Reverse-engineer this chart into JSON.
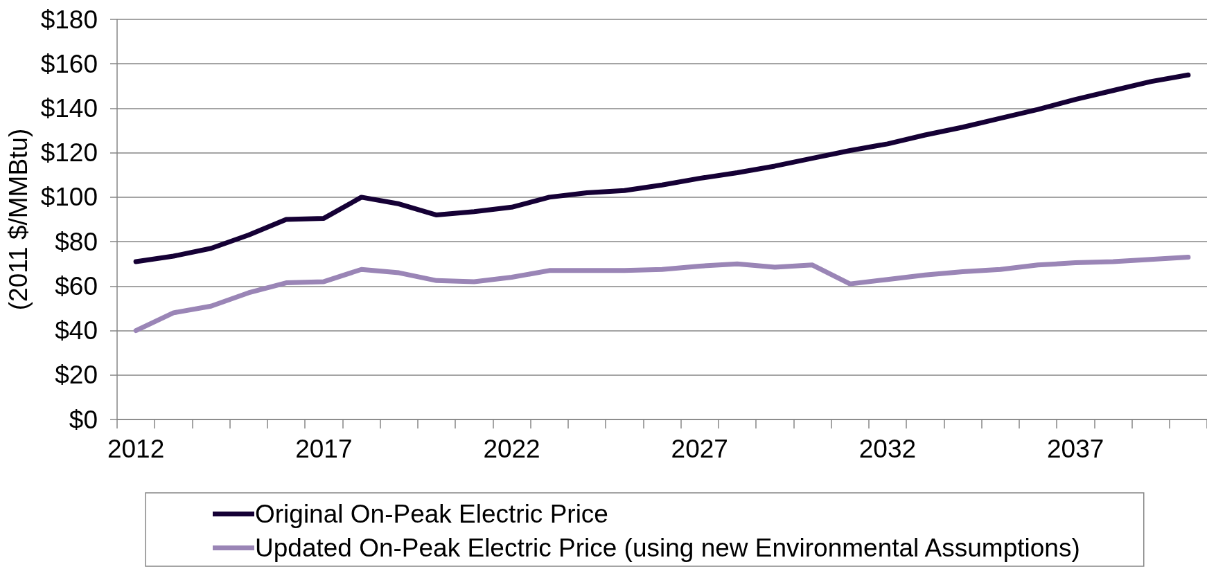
{
  "chart_data": {
    "type": "line",
    "ylabel": "(2011 $/MMBtu)",
    "categories": [
      "2012",
      null,
      null,
      null,
      null,
      "2017",
      null,
      null,
      null,
      null,
      "2022",
      null,
      null,
      null,
      null,
      "2027",
      null,
      null,
      null,
      null,
      "2032",
      null,
      null,
      null,
      null,
      "2037",
      null,
      null,
      null
    ],
    "series": [
      {
        "name": "Original On-Peak Electric Price",
        "color": "#150035",
        "values": [
          71,
          73.5,
          77,
          83,
          90,
          90.5,
          100,
          97,
          92,
          93.5,
          95.5,
          100,
          102,
          103,
          105.5,
          108.5,
          111,
          114,
          117.5,
          121,
          124,
          128,
          131.5,
          135.5,
          139.5,
          144,
          148,
          152,
          155
        ]
      },
      {
        "name": "Updated On-Peak Electric Price (using new Environmental Assumptions)",
        "color": "#9a85b6",
        "values": [
          40,
          48,
          51,
          57,
          61.5,
          62,
          67.5,
          66,
          62.5,
          62,
          64,
          67,
          67,
          67,
          67.5,
          69,
          70,
          68.5,
          69.5,
          61,
          63,
          65,
          66.5,
          67.5,
          69.5,
          70.5,
          71,
          72,
          73
        ]
      }
    ],
    "ylim": [
      0,
      180
    ],
    "yticks": [
      {
        "value": 0,
        "label": "$0"
      },
      {
        "value": 20,
        "label": "$20"
      },
      {
        "value": 40,
        "label": "$40"
      },
      {
        "value": 60,
        "label": "$60"
      },
      {
        "value": 80,
        "label": "$80"
      },
      {
        "value": 100,
        "label": "$100"
      },
      {
        "value": 120,
        "label": "$120"
      },
      {
        "value": 140,
        "label": "$140"
      },
      {
        "value": 160,
        "label": "$160"
      },
      {
        "value": 180,
        "label": "$180"
      }
    ],
    "grid": "y",
    "legend": "bottom"
  }
}
